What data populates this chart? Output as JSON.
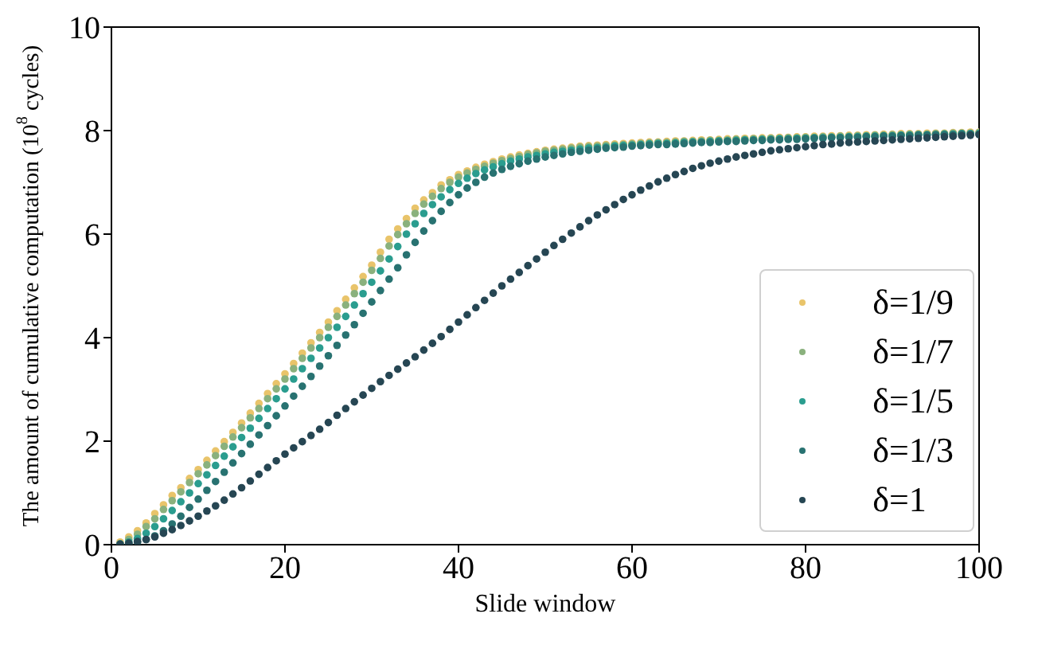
{
  "chart_data": {
    "type": "scatter",
    "xlabel": "Slide window",
    "ylabel": "The amount of cumulative computation (10$^{8}$ cycles)",
    "x": [
      1,
      2,
      3,
      4,
      5,
      6,
      7,
      8,
      9,
      10,
      11,
      12,
      13,
      14,
      15,
      16,
      17,
      18,
      19,
      20,
      21,
      22,
      23,
      24,
      25,
      26,
      27,
      28,
      29,
      30,
      31,
      32,
      33,
      34,
      35,
      36,
      37,
      38,
      39,
      40,
      41,
      42,
      43,
      44,
      45,
      46,
      47,
      48,
      49,
      50,
      51,
      52,
      53,
      54,
      55,
      56,
      57,
      58,
      59,
      60,
      61,
      62,
      63,
      64,
      65,
      66,
      67,
      68,
      69,
      70,
      71,
      72,
      73,
      74,
      75,
      76,
      77,
      78,
      79,
      80,
      81,
      82,
      83,
      84,
      85,
      86,
      87,
      88,
      89,
      90,
      91,
      92,
      93,
      94,
      95,
      96,
      97,
      98,
      99,
      100
    ],
    "series": [
      {
        "name": "δ=1/9",
        "color": "#e9c46a",
        "values": [
          0.05,
          0.15,
          0.27,
          0.42,
          0.6,
          0.77,
          0.95,
          1.1,
          1.28,
          1.45,
          1.63,
          1.81,
          1.99,
          2.17,
          2.35,
          2.54,
          2.73,
          2.92,
          3.11,
          3.3,
          3.5,
          3.7,
          3.9,
          4.1,
          4.3,
          4.52,
          4.74,
          4.96,
          5.18,
          5.4,
          5.65,
          5.9,
          6.1,
          6.3,
          6.5,
          6.66,
          6.8,
          6.95,
          7.05,
          7.15,
          7.22,
          7.29,
          7.35,
          7.4,
          7.45,
          7.49,
          7.53,
          7.56,
          7.59,
          7.62,
          7.64,
          7.66,
          7.68,
          7.7,
          7.71,
          7.72,
          7.73,
          7.74,
          7.75,
          7.76,
          7.77,
          7.78,
          7.78,
          7.79,
          7.8,
          7.8,
          7.81,
          7.82,
          7.82,
          7.83,
          7.84,
          7.84,
          7.85,
          7.85,
          7.86,
          7.86,
          7.87,
          7.87,
          7.88,
          7.88,
          7.89,
          7.89,
          7.9,
          7.9,
          7.91,
          7.91,
          7.92,
          7.92,
          7.93,
          7.93,
          7.94,
          7.94,
          7.94,
          7.95,
          7.95,
          7.95,
          7.96,
          7.96,
          7.97,
          7.97
        ]
      },
      {
        "name": "δ=1/7",
        "color": "#8ab17d",
        "values": [
          0.02,
          0.1,
          0.2,
          0.35,
          0.5,
          0.68,
          0.85,
          1.02,
          1.2,
          1.37,
          1.54,
          1.72,
          1.9,
          2.08,
          2.26,
          2.45,
          2.63,
          2.82,
          3.01,
          3.2,
          3.4,
          3.6,
          3.8,
          4.0,
          4.2,
          4.41,
          4.63,
          4.85,
          5.07,
          5.3,
          5.53,
          5.77,
          5.99,
          6.2,
          6.4,
          6.58,
          6.73,
          6.88,
          7.0,
          7.1,
          7.18,
          7.25,
          7.31,
          7.37,
          7.42,
          7.46,
          7.5,
          7.54,
          7.57,
          7.6,
          7.62,
          7.64,
          7.66,
          7.68,
          7.69,
          7.7,
          7.71,
          7.72,
          7.73,
          7.74,
          7.75,
          7.76,
          7.77,
          7.77,
          7.78,
          7.79,
          7.79,
          7.8,
          7.81,
          7.81,
          7.82,
          7.83,
          7.83,
          7.84,
          7.84,
          7.85,
          7.85,
          7.86,
          7.86,
          7.87,
          7.87,
          7.88,
          7.88,
          7.89,
          7.89,
          7.9,
          7.9,
          7.91,
          7.91,
          7.92,
          7.92,
          7.93,
          7.93,
          7.93,
          7.94,
          7.94,
          7.95,
          7.95,
          7.95,
          7.96
        ]
      },
      {
        "name": "δ=1/5",
        "color": "#2a9d8f",
        "values": [
          0.01,
          0.05,
          0.12,
          0.22,
          0.35,
          0.5,
          0.66,
          0.83,
          1.0,
          1.18,
          1.35,
          1.53,
          1.71,
          1.89,
          2.07,
          2.25,
          2.44,
          2.63,
          2.82,
          3.01,
          3.2,
          3.4,
          3.6,
          3.8,
          4.0,
          4.2,
          4.41,
          4.63,
          4.85,
          5.07,
          5.29,
          5.52,
          5.76,
          6.0,
          6.2,
          6.4,
          6.57,
          6.72,
          6.86,
          6.98,
          7.08,
          7.17,
          7.24,
          7.3,
          7.36,
          7.41,
          7.45,
          7.49,
          7.52,
          7.55,
          7.58,
          7.6,
          7.62,
          7.64,
          7.66,
          7.67,
          7.68,
          7.7,
          7.71,
          7.72,
          7.73,
          7.74,
          7.75,
          7.75,
          7.76,
          7.77,
          7.78,
          7.78,
          7.79,
          7.8,
          7.8,
          7.81,
          7.82,
          7.82,
          7.83,
          7.83,
          7.84,
          7.84,
          7.85,
          7.85,
          7.86,
          7.86,
          7.87,
          7.87,
          7.88,
          7.88,
          7.89,
          7.89,
          7.9,
          7.9,
          7.91,
          7.91,
          7.92,
          7.92,
          7.92,
          7.93,
          7.93,
          7.94,
          7.94,
          7.94
        ]
      },
      {
        "name": "δ=1/3",
        "color": "#287271",
        "values": [
          null,
          0.02,
          0.05,
          0.1,
          0.17,
          0.27,
          0.4,
          0.55,
          0.72,
          0.88,
          1.05,
          1.22,
          1.4,
          1.58,
          1.76,
          1.94,
          2.12,
          2.3,
          2.49,
          2.68,
          2.87,
          3.06,
          3.25,
          3.45,
          3.65,
          3.85,
          4.05,
          4.25,
          4.47,
          4.69,
          4.91,
          5.13,
          5.35,
          5.6,
          5.84,
          6.06,
          6.26,
          6.44,
          6.61,
          6.76,
          6.89,
          7.0,
          7.1,
          7.18,
          7.25,
          7.31,
          7.36,
          7.41,
          7.45,
          7.49,
          7.52,
          7.55,
          7.58,
          7.6,
          7.62,
          7.64,
          7.66,
          7.67,
          7.68,
          7.7,
          7.71,
          7.72,
          7.73,
          7.73,
          7.74,
          7.75,
          7.76,
          7.77,
          7.77,
          7.78,
          7.79,
          7.79,
          7.8,
          7.81,
          7.81,
          7.82,
          7.82,
          7.83,
          7.83,
          7.84,
          7.85,
          7.85,
          7.86,
          7.86,
          7.87,
          7.87,
          7.88,
          7.88,
          7.89,
          7.89,
          7.9,
          7.9,
          7.91,
          7.91,
          7.92,
          7.92,
          7.92,
          7.93,
          7.93,
          7.93
        ]
      },
      {
        "name": "δ=1",
        "color": "#264653",
        "values": [
          0.01,
          0.03,
          0.06,
          0.1,
          0.15,
          0.22,
          0.29,
          0.37,
          0.46,
          0.55,
          0.65,
          0.75,
          0.86,
          0.98,
          1.1,
          1.23,
          1.36,
          1.49,
          1.62,
          1.75,
          1.87,
          1.99,
          2.11,
          2.23,
          2.36,
          2.5,
          2.63,
          2.76,
          2.89,
          3.02,
          3.15,
          3.27,
          3.39,
          3.51,
          3.63,
          3.76,
          3.89,
          4.02,
          4.16,
          4.3,
          4.44,
          4.58,
          4.72,
          4.86,
          5.0,
          5.13,
          5.26,
          5.39,
          5.52,
          5.65,
          5.78,
          5.9,
          6.02,
          6.14,
          6.26,
          6.37,
          6.47,
          6.57,
          6.67,
          6.76,
          6.85,
          6.93,
          7.01,
          7.08,
          7.15,
          7.21,
          7.27,
          7.32,
          7.37,
          7.41,
          7.45,
          7.49,
          7.52,
          7.55,
          7.58,
          7.61,
          7.63,
          7.65,
          7.67,
          7.69,
          7.71,
          7.73,
          7.74,
          7.76,
          7.77,
          7.78,
          7.79,
          7.8,
          7.81,
          7.82,
          7.83,
          7.84,
          7.85,
          7.86,
          7.87,
          7.88,
          7.89,
          7.9,
          7.91,
          7.92
        ]
      }
    ],
    "xlim": [
      0,
      100
    ],
    "xticks": [
      0,
      20,
      40,
      60,
      80,
      100
    ],
    "ylim": [
      0,
      10
    ],
    "yticks": [
      0,
      2,
      4,
      6,
      8,
      10
    ],
    "legend": "bottom right",
    "marker": "circle"
  }
}
